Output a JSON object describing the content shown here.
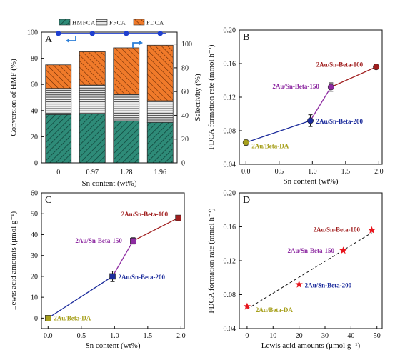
{
  "chart_data": [
    {
      "panel": "A",
      "type": "bar",
      "categories": [
        "0",
        "0.97",
        "1.28",
        "1.96"
      ],
      "xlabel": "Sn content (wt%)",
      "ylabel": "Conversion of HMF (%)",
      "y2label": "Selectivity (%)",
      "ylim": [
        0,
        100
      ],
      "y2lim": [
        0,
        110
      ],
      "yticks": [
        "0",
        "20",
        "40",
        "60",
        "80",
        "100"
      ],
      "y2ticks": [
        "0",
        "20",
        "40",
        "60",
        "80",
        "100"
      ],
      "legend": [
        "HMFCA",
        "FFCA",
        "FDCA"
      ],
      "legend_position": "top",
      "series": [
        {
          "name": "HMFCA",
          "values": [
            37,
            37.5,
            32,
            31
          ]
        },
        {
          "name": "FFCA",
          "values": [
            20,
            22,
            20.5,
            16.5
          ]
        },
        {
          "name": "FDCA",
          "values": [
            18,
            25.5,
            35.5,
            42.5
          ]
        }
      ],
      "conversion_line": {
        "axis": "left",
        "values": [
          99,
          99,
          99,
          99
        ]
      },
      "colors": {
        "HMFCA": "#2e8b78",
        "FFCA": "#e6e6e6",
        "FDCA": "#f07a2a",
        "line": "#1f3fd0",
        "arrow": "#2c7fd8"
      }
    },
    {
      "panel": "B",
      "type": "scatter",
      "xlabel": "Sn content (wt%)",
      "ylabel": "FDCA formation rate (mmol h⁻¹)",
      "xlim": [
        -0.1,
        2.05
      ],
      "ylim": [
        0.04,
        0.2
      ],
      "xticks": [
        "0.0",
        "0.5",
        "1.0",
        "1.5",
        "2.0"
      ],
      "yticks": [
        "0.04",
        "0.08",
        "0.12",
        "0.16",
        "0.20"
      ],
      "points": [
        {
          "label": "2Au/Beta-DA",
          "x": 0,
          "y": 0.066,
          "err": 0.004,
          "color": "#a7a01d"
        },
        {
          "label": "2Au/Sn-Beta-200",
          "x": 0.97,
          "y": 0.092,
          "err": 0.007,
          "color": "#1c2c9c"
        },
        {
          "label": "2Au/Sn-Beta-150",
          "x": 1.28,
          "y": 0.132,
          "err": 0.005,
          "color": "#8e2ba2"
        },
        {
          "label": "2Au/Sn-Beta-100",
          "x": 1.96,
          "y": 0.156,
          "err": 0.002,
          "color": "#a01e1e"
        }
      ]
    },
    {
      "panel": "C",
      "type": "scatter",
      "xlabel": "Sn content (wt%)",
      "ylabel": "Lewis acid amounts (μmol g⁻¹)",
      "xlim": [
        -0.1,
        2.05
      ],
      "ylim": [
        -5,
        60
      ],
      "xticks": [
        "0.0",
        "0.5",
        "1.0",
        "1.5",
        "2.0"
      ],
      "yticks": [
        "0",
        "10",
        "20",
        "30",
        "40",
        "50",
        "60"
      ],
      "points": [
        {
          "label": "2Au/Beta-DA",
          "x": 0,
          "y": 0,
          "err": 0.5,
          "color": "#a7a01d"
        },
        {
          "label": "2Au/Sn-Beta-200",
          "x": 0.97,
          "y": 20,
          "err": 2.5,
          "color": "#1c2c9c"
        },
        {
          "label": "2Au/Sn-Beta-150",
          "x": 1.28,
          "y": 37,
          "err": 1.5,
          "color": "#8e2ba2"
        },
        {
          "label": "2Au/Sn-Beta-100",
          "x": 1.96,
          "y": 48,
          "err": 1,
          "color": "#a01e1e"
        }
      ]
    },
    {
      "panel": "D",
      "type": "scatter",
      "xlabel": "Lewis acid amounts (μmol g⁻¹)",
      "ylabel": "FDCA formation rate (mmol h⁻¹)",
      "xlim": [
        -3,
        52
      ],
      "ylim": [
        0.04,
        0.2
      ],
      "xticks": [
        "0",
        "10",
        "20",
        "30",
        "40",
        "50"
      ],
      "yticks": [
        "0.04",
        "0.08",
        "0.12",
        "0.16",
        "0.20"
      ],
      "points": [
        {
          "label": "2Au/Beta-DA",
          "x": 0,
          "y": 0.066
        },
        {
          "label": "2Au/Sn-Beta-200",
          "x": 20,
          "y": 0.092
        },
        {
          "label": "2Au/Sn-Beta-150",
          "x": 37,
          "y": 0.132
        },
        {
          "label": "2Au/Sn-Beta-100",
          "x": 48,
          "y": 0.156
        }
      ],
      "fit_line": {
        "x": [
          0,
          48
        ],
        "y": [
          0.063,
          0.153
        ],
        "style": "dashed"
      },
      "colors": {
        "marker": "#e8141c",
        "labels": [
          "#a7a01d",
          "#1c2c9c",
          "#8e2ba2",
          "#a01e1e"
        ]
      }
    }
  ]
}
